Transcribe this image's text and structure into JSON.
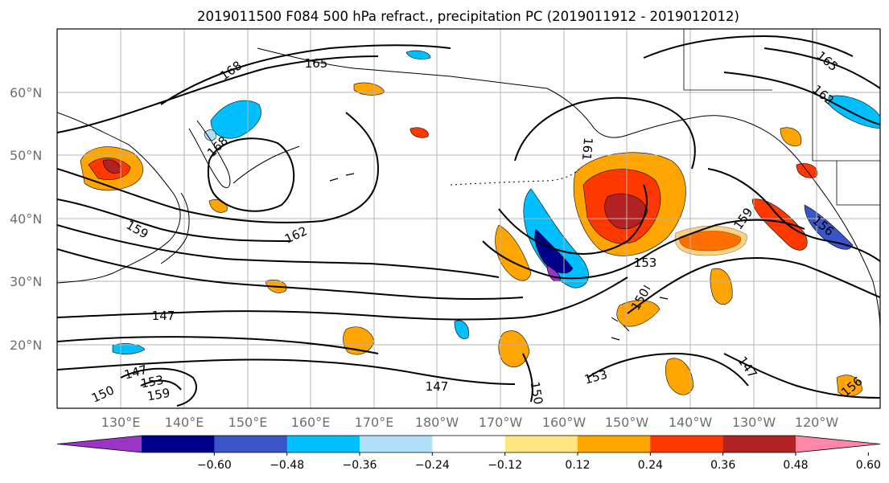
{
  "title": "2019011500 F084 500 hPa refract., precipitation PC (2019011912 - 2019012012)",
  "lat_labels": [
    "60°N",
    "50°N",
    "40°N",
    "30°N",
    "20°N"
  ],
  "lon_labels": [
    "130°E",
    "140°E",
    "150°E",
    "160°E",
    "170°E",
    "180°W",
    "170°W",
    "160°W",
    "150°W",
    "140°W",
    "130°W",
    "120°W"
  ],
  "contour_labels": [
    "168",
    "165",
    "168",
    "159",
    "162",
    "147",
    "147",
    "153",
    "159",
    "150",
    "147",
    "150",
    "153",
    "150",
    "153",
    "159",
    "156",
    "147",
    "156",
    "165",
    "162",
    "161"
  ],
  "colorbar": {
    "tick_labels": [
      "−0.60",
      "−0.48",
      "−0.36",
      "−0.24",
      "−0.12",
      "0.12",
      "0.24",
      "0.36",
      "0.48",
      "0.60"
    ],
    "colors": [
      "#9a35c8",
      "#00008b",
      "#3a55c8",
      "#00bfff",
      "#b0e0f8",
      "#ffffff",
      "#ffe680",
      "#ffa500",
      "#ff3800",
      "#b22222",
      "#ff88aa"
    ]
  }
}
